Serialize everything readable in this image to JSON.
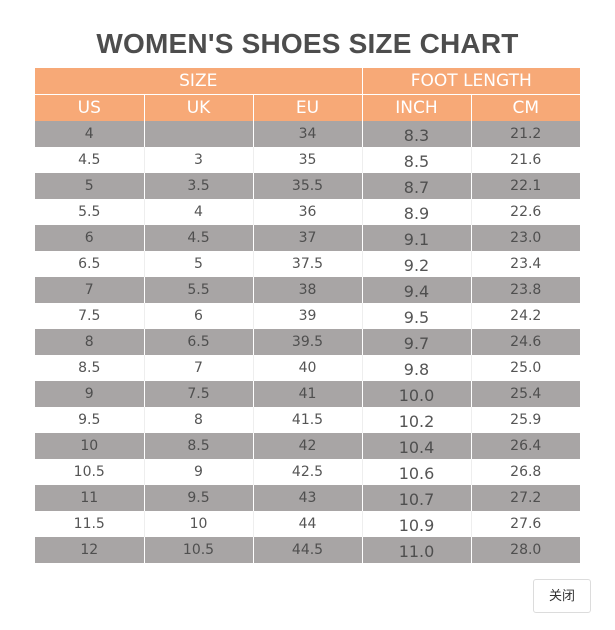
{
  "title": "WOMEN'S SHOES SIZE CHART",
  "header_groups": {
    "size": "SIZE",
    "foot_length": "FOOT LENGTH"
  },
  "columns": [
    "US",
    "UK",
    "EU",
    "INCH",
    "CM"
  ],
  "rows": [
    [
      "4",
      "",
      "34",
      "8.3",
      "21.2"
    ],
    [
      "4.5",
      "3",
      "35",
      "8.5",
      "21.6"
    ],
    [
      "5",
      "3.5",
      "35.5",
      "8.7",
      "22.1"
    ],
    [
      "5.5",
      "4",
      "36",
      "8.9",
      "22.6"
    ],
    [
      "6",
      "4.5",
      "37",
      "9.1",
      "23.0"
    ],
    [
      "6.5",
      "5",
      "37.5",
      "9.2",
      "23.4"
    ],
    [
      "7",
      "5.5",
      "38",
      "9.4",
      "23.8"
    ],
    [
      "7.5",
      "6",
      "39",
      "9.5",
      "24.2"
    ],
    [
      "8",
      "6.5",
      "39.5",
      "9.7",
      "24.6"
    ],
    [
      "8.5",
      "7",
      "40",
      "9.8",
      "25.0"
    ],
    [
      "9",
      "7.5",
      "41",
      "10.0",
      "25.4"
    ],
    [
      "9.5",
      "8",
      "41.5",
      "10.2",
      "25.9"
    ],
    [
      "10",
      "8.5",
      "42",
      "10.4",
      "26.4"
    ],
    [
      "10.5",
      "9",
      "42.5",
      "10.6",
      "26.8"
    ],
    [
      "11",
      "9.5",
      "43",
      "10.7",
      "27.2"
    ],
    [
      "11.5",
      "10",
      "44",
      "10.9",
      "27.6"
    ],
    [
      "12",
      "10.5",
      "44.5",
      "11.0",
      "28.0"
    ]
  ],
  "colors": {
    "header_bg": "#f7a977",
    "header_text": "#ffffff",
    "stripe_bg": "#a8a5a5",
    "title_text": "#4d4d4d"
  },
  "close_button": {
    "label": "关闭"
  }
}
